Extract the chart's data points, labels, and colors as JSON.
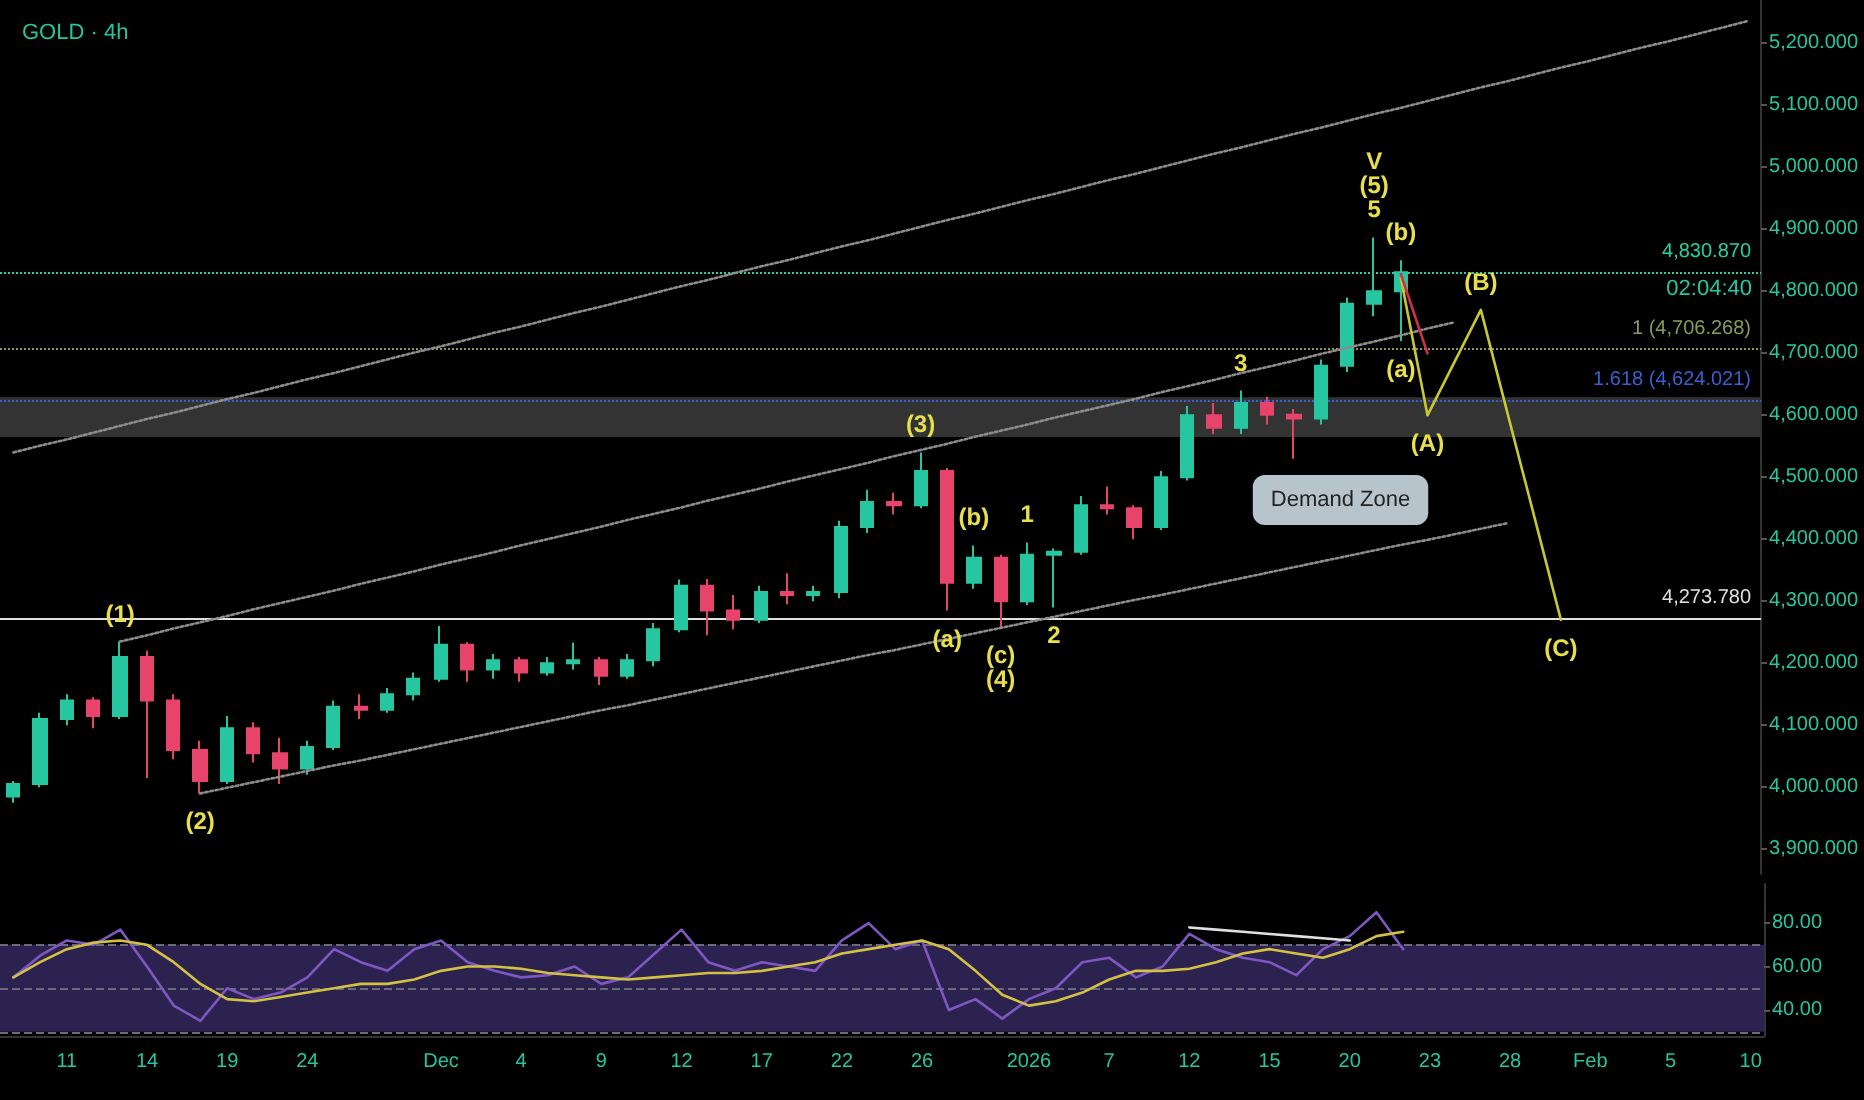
{
  "chart_data": [
    {
      "type": "candlestick",
      "title": "GOLD · 4h",
      "categories": [
        null,
        null,
        null,
        null,
        null,
        null,
        null,
        null,
        null,
        null,
        null,
        null,
        null,
        null,
        null,
        null,
        null,
        null,
        null,
        null,
        null,
        null,
        null,
        null,
        null,
        null,
        null,
        null,
        null,
        null,
        null,
        null,
        null,
        null,
        null,
        null,
        null,
        null,
        null,
        null,
        null,
        null,
        null,
        null,
        null,
        null,
        null,
        null,
        null,
        null,
        null,
        null,
        null,
        null,
        null,
        null,
        null,
        null,
        null,
        null,
        null,
        null,
        null,
        null,
        null,
        null
      ],
      "ohlc": [
        [
          3985,
          4010,
          3975,
          4005
        ],
        [
          4005,
          4120,
          4000,
          4110
        ],
        [
          4110,
          4150,
          4100,
          4140
        ],
        [
          4140,
          4145,
          4095,
          4115
        ],
        [
          4115,
          4235,
          4110,
          4210
        ],
        [
          4210,
          4220,
          4015,
          4140
        ],
        [
          4140,
          4150,
          4045,
          4060
        ],
        [
          4060,
          4075,
          3990,
          4010
        ],
        [
          4010,
          4115,
          4005,
          4095
        ],
        [
          4095,
          4105,
          4040,
          4055
        ],
        [
          4055,
          4080,
          4005,
          4030
        ],
        [
          4030,
          4075,
          4020,
          4065
        ],
        [
          4065,
          4140,
          4060,
          4130
        ],
        [
          4130,
          4150,
          4110,
          4125
        ],
        [
          4125,
          4160,
          4120,
          4150
        ],
        [
          4150,
          4185,
          4140,
          4175
        ],
        [
          4175,
          4260,
          4170,
          4230
        ],
        [
          4230,
          4234,
          4170,
          4190
        ],
        [
          4190,
          4215,
          4175,
          4205
        ],
        [
          4205,
          4210,
          4170,
          4185
        ],
        [
          4185,
          4210,
          4180,
          4200
        ],
        [
          4200,
          4233,
          4190,
          4205
        ],
        [
          4205,
          4210,
          4165,
          4180
        ],
        [
          4180,
          4215,
          4175,
          4205
        ],
        [
          4205,
          4265,
          4195,
          4255
        ],
        [
          4255,
          4335,
          4250,
          4325
        ],
        [
          4325,
          4336,
          4245,
          4285
        ],
        [
          4285,
          4310,
          4255,
          4270
        ],
        [
          4270,
          4325,
          4265,
          4315
        ],
        [
          4315,
          4345,
          4295,
          4310
        ],
        [
          4310,
          4325,
          4300,
          4315
        ],
        [
          4315,
          4430,
          4305,
          4420
        ],
        [
          4420,
          4480,
          4410,
          4460
        ],
        [
          4460,
          4475,
          4440,
          4455
        ],
        [
          4455,
          4540,
          4450,
          4510
        ],
        [
          4510,
          4515,
          4285,
          4330
        ],
        [
          4330,
          4390,
          4320,
          4370
        ],
        [
          4370,
          4375,
          4258,
          4300
        ],
        [
          4300,
          4395,
          4294,
          4375
        ],
        [
          4375,
          4385,
          4290,
          4380
        ],
        [
          4380,
          4470,
          4375,
          4455
        ],
        [
          4455,
          4485,
          4440,
          4450
        ],
        [
          4450,
          4455,
          4400,
          4420
        ],
        [
          4420,
          4510,
          4415,
          4500
        ],
        [
          4500,
          4615,
          4495,
          4600
        ],
        [
          4600,
          4620,
          4570,
          4580
        ],
        [
          4580,
          4640,
          4570,
          4620
        ],
        [
          4620,
          4630,
          4585,
          4601
        ],
        [
          4601,
          4610,
          4530,
          4595
        ],
        [
          4595,
          4690,
          4585,
          4680
        ],
        [
          4680,
          4790,
          4670,
          4780
        ],
        [
          4780,
          4887,
          4760,
          4800
        ],
        [
          4800,
          4850,
          4720,
          4830.87
        ],
        null,
        null,
        null,
        null,
        null,
        null,
        null,
        null,
        null,
        null,
        null,
        null,
        null
      ],
      "colors": [
        "#26c6a0",
        "#26c6a0",
        "#26c6a0",
        "#e8436a",
        "#26c6a0",
        "#e8436a",
        "#e8436a",
        "#e8436a",
        "#26c6a0",
        "#e8436a",
        "#e8436a",
        "#26c6a0",
        "#26c6a0",
        "#e8436a",
        "#26c6a0",
        "#26c6a0",
        "#26c6a0",
        "#e8436a",
        "#26c6a0",
        "#e8436a",
        "#26c6a0",
        "#26c6a0",
        "#e8436a",
        "#26c6a0",
        "#26c6a0",
        "#26c6a0",
        "#e8436a",
        "#e8436a",
        "#26c6a0",
        "#e8436a",
        "#26c6a0",
        "#26c6a0",
        "#26c6a0",
        "#e8436a",
        "#26c6a0",
        "#e8436a",
        "#26c6a0",
        "#e8436a",
        "#26c6a0",
        "#26c6a0",
        "#26c6a0",
        "#e8436a",
        "#e8436a",
        "#26c6a0",
        "#26c6a0",
        "#e8436a",
        "#26c6a0",
        "#e8436a",
        "#e8436a",
        "#26c6a0",
        "#26c6a0",
        "#26c6a0",
        "#26c6a0",
        null,
        null,
        null,
        null,
        null,
        null,
        null,
        null,
        null,
        null,
        null,
        null,
        null
      ],
      "series": [
        {
          "type": "line",
          "color": "#8c8c8c",
          "line_style": "dotted",
          "values": [
            4540,
            4551,
            4561,
            4572,
            4583,
            4594,
            4604,
            4615,
            4626,
            4636,
            4647,
            4658,
            4668,
            4679,
            4690,
            4701,
            4711,
            4722,
            4733,
            4743,
            4754,
            4765,
            4775,
            4786,
            4797,
            4808,
            4818,
            4829,
            4840,
            4850,
            4861,
            4872,
            4882,
            4893,
            4904,
            4915,
            4925,
            4936,
            4947,
            4957,
            4968,
            4979,
            4989,
            5000,
            5011,
            5022,
            5032,
            5043,
            5054,
            5064,
            5075,
            5086,
            5096,
            5107,
            5118,
            5129,
            5139,
            5150,
            5161,
            5171,
            5182,
            5193,
            5203,
            5214,
            5225,
            5236
          ]
        },
        {
          "type": "line",
          "color": "#8c8c8c",
          "line_style": "dotted",
          "values": [
            null,
            null,
            null,
            null,
            4235,
            4245,
            4256,
            4266,
            4276,
            4287,
            4297,
            4307,
            4317,
            4328,
            4338,
            4348,
            4359,
            4369,
            4379,
            4390,
            4400,
            4410,
            4420,
            4431,
            4441,
            4451,
            4462,
            4472,
            4482,
            4493,
            4503,
            4513,
            4523,
            4534,
            4544,
            4554,
            4565,
            4575,
            4585,
            4596,
            4606,
            4616,
            4626,
            4637,
            4647,
            4657,
            4668,
            4678,
            4688,
            4699,
            4709,
            4719,
            4729,
            4740,
            4750,
            null,
            null,
            null,
            null,
            null,
            null,
            null,
            null,
            null,
            null,
            null
          ]
        },
        {
          "type": "line",
          "color": "#8c8c8c",
          "line_style": "dotted",
          "values": [
            null,
            null,
            null,
            null,
            null,
            null,
            null,
            3990,
            3999,
            4008,
            4017,
            4026,
            4035,
            4043,
            4052,
            4061,
            4070,
            4079,
            4088,
            4097,
            4106,
            4115,
            4124,
            4132,
            4141,
            4150,
            4159,
            4168,
            4177,
            4186,
            4195,
            4204,
            4213,
            4221,
            4230,
            4239,
            4248,
            4257,
            4266,
            4275,
            4284,
            4293,
            4302,
            4310,
            4319,
            4328,
            4337,
            4346,
            4355,
            4364,
            4373,
            4382,
            4391,
            4399,
            4408,
            4417,
            4426,
            null,
            null,
            null,
            null,
            null,
            null,
            null,
            null,
            null
          ]
        },
        {
          "type": "line",
          "color": "#c8c832",
          "line_style": "solid",
          "values": [
            null,
            null,
            null,
            null,
            null,
            null,
            null,
            null,
            null,
            null,
            null,
            null,
            null,
            null,
            null,
            null,
            null,
            null,
            null,
            null,
            null,
            null,
            null,
            null,
            null,
            null,
            null,
            null,
            null,
            null,
            null,
            null,
            null,
            null,
            null,
            null,
            null,
            null,
            null,
            null,
            null,
            null,
            null,
            null,
            null,
            null,
            null,
            null,
            null,
            null,
            null,
            null,
            4822,
            4600,
            4685,
            4770,
            4603,
            4437,
            4270,
            null,
            null,
            null,
            null,
            null,
            null,
            null
          ]
        },
        {
          "type": "line",
          "color": "#d0304a",
          "line_style": "solid",
          "values": [
            null,
            null,
            null,
            null,
            null,
            null,
            null,
            null,
            null,
            null,
            null,
            null,
            null,
            null,
            null,
            null,
            null,
            null,
            null,
            null,
            null,
            null,
            null,
            null,
            null,
            null,
            null,
            null,
            null,
            null,
            null,
            null,
            null,
            null,
            null,
            null,
            null,
            null,
            null,
            null,
            null,
            null,
            null,
            null,
            null,
            null,
            null,
            null,
            null,
            null,
            null,
            null,
            4828,
            4700,
            null,
            null,
            null,
            null,
            null,
            null,
            null,
            null,
            null,
            null,
            null,
            null
          ]
        }
      ],
      "ylim": [
        3860,
        5270
      ],
      "yticks": [
        {
          "value": 3900,
          "label": "3,900.000"
        },
        {
          "value": 4000,
          "label": "4,000.000"
        },
        {
          "value": 4100,
          "label": "4,100.000"
        },
        {
          "value": 4200,
          "label": "4,200.000"
        },
        {
          "value": 4300,
          "label": "4,300.000"
        },
        {
          "value": 4400,
          "label": "4,400.000"
        },
        {
          "value": 4500,
          "label": "4,500.000"
        },
        {
          "value": 4600,
          "label": "4,600.000"
        },
        {
          "value": 4700,
          "label": "4,700.000"
        },
        {
          "value": 4800,
          "label": "4,800.000"
        },
        {
          "value": 4900,
          "label": "4,900.000"
        },
        {
          "value": 5000,
          "label": "5,000.000"
        },
        {
          "value": 5100,
          "label": "5,100.000"
        },
        {
          "value": 5200,
          "label": "5,200.000"
        }
      ],
      "ref_lines": [
        {
          "axis": "y",
          "value": 4830.87,
          "label": "4,830.870",
          "color": "#22d3a6",
          "line_style": "dotted"
        },
        {
          "axis": "y",
          "value": 4706.268,
          "label": "1 (4,706.268)",
          "color": "#8a9a5b",
          "line_style": "dotted"
        },
        {
          "axis": "y",
          "value": 4624.021,
          "label": "1.618 (4,624.021)",
          "color": "#3a5fd0",
          "line_style": "dotted"
        },
        {
          "axis": "y",
          "value": 4273.78,
          "label": "4,273.780",
          "color": "#e0e0e0",
          "line_style": "solid"
        }
      ],
      "bands": [
        {
          "axis": "y",
          "from": 4565,
          "to": 4629,
          "label": "Demand Zone",
          "color": "#333333"
        }
      ],
      "annotations": [
        {
          "text": "(1)",
          "y": 4235
        },
        {
          "text": "(2)",
          "y": 3990
        },
        {
          "text": "(3)",
          "y": 4540
        },
        {
          "text": "(a)",
          "y": 4285
        },
        {
          "text": "(b)",
          "y": 4390
        },
        {
          "text": "(c)",
          "y": 4258
        },
        {
          "text": "(4)",
          "y": 4258
        },
        {
          "text": "1",
          "y": 4395
        },
        {
          "text": "2",
          "y": 4290
        },
        {
          "text": "3",
          "y": 4640
        },
        {
          "text": "5",
          "y": 4887
        },
        {
          "text": "(5)",
          "y": 4887
        },
        {
          "text": "V",
          "y": 4887
        },
        {
          "text": "(b)",
          "y": 4850
        },
        {
          "text": "(a)",
          "y": 4720
        },
        {
          "text": "(A)",
          "y": 4600
        },
        {
          "text": "(B)",
          "y": 4770
        },
        {
          "text": "(C)",
          "y": 4270
        },
        "02:04:40"
      ],
      "tick_labels": "y",
      "grid": false,
      "marker": "none"
    },
    {
      "type": "line",
      "categories": [
        null,
        null,
        "11",
        null,
        null,
        "14",
        null,
        null,
        "19",
        null,
        null,
        "24",
        null,
        null,
        null,
        null,
        "Dec",
        null,
        null,
        "4",
        null,
        null,
        "9",
        null,
        null,
        "12",
        null,
        null,
        "17",
        null,
        null,
        "22",
        null,
        null,
        "26",
        null,
        null,
        null,
        "2026",
        null,
        null,
        "7",
        null,
        null,
        "12",
        null,
        null,
        "15",
        null,
        null,
        "20",
        null,
        null,
        "23",
        null,
        null,
        "28",
        null,
        null,
        "Feb",
        null,
        null,
        "5",
        null,
        null,
        "10"
      ],
      "series": [
        {
          "color": "#7e57c2",
          "values": [
            55,
            65,
            72,
            70,
            77,
            60,
            42,
            35,
            50,
            45,
            48,
            55,
            68,
            62,
            58,
            68,
            72,
            62,
            58,
            55,
            56,
            60,
            52,
            55,
            66,
            77,
            62,
            58,
            62,
            60,
            58,
            72,
            80,
            68,
            72,
            40,
            45,
            36,
            45,
            50,
            62,
            64,
            55,
            60,
            75,
            68,
            64,
            62,
            56,
            68,
            74,
            85,
            68,
            null,
            null,
            null,
            null,
            null,
            null,
            null,
            null,
            null,
            null,
            null,
            null,
            null
          ]
        },
        {
          "color": "#d4c043",
          "values": [
            55,
            62,
            68,
            71,
            72,
            70,
            62,
            52,
            45,
            44,
            46,
            48,
            50,
            52,
            52,
            54,
            58,
            60,
            60,
            59,
            57,
            56,
            55,
            54,
            55,
            56,
            57,
            57,
            58,
            60,
            62,
            66,
            68,
            70,
            72,
            68,
            58,
            47,
            42,
            44,
            48,
            54,
            58,
            58,
            59,
            62,
            66,
            68,
            66,
            64,
            68,
            74,
            76,
            null,
            null,
            null,
            null,
            null,
            null,
            null,
            null,
            null,
            null,
            null,
            null,
            null
          ]
        },
        {
          "color": "#e0e0e0",
          "values": [
            null,
            null,
            null,
            null,
            null,
            null,
            null,
            null,
            null,
            null,
            null,
            null,
            null,
            null,
            null,
            null,
            null,
            null,
            null,
            null,
            null,
            null,
            null,
            null,
            null,
            null,
            null,
            null,
            null,
            null,
            null,
            null,
            null,
            null,
            null,
            null,
            null,
            null,
            null,
            null,
            null,
            null,
            null,
            null,
            78,
            77,
            76,
            75,
            74,
            73,
            72,
            null,
            null,
            null,
            null,
            null,
            null,
            null,
            null,
            null,
            null,
            null,
            null,
            null,
            null,
            null
          ]
        }
      ],
      "ylim": [
        28,
        98
      ],
      "yticks": [
        {
          "value": 40,
          "label": "40.00"
        },
        {
          "value": 60,
          "label": "60.00"
        },
        {
          "value": 80,
          "label": "80.00"
        }
      ],
      "bands": [
        {
          "axis": "y",
          "from": 30,
          "to": 70,
          "color": "#2c2250"
        }
      ],
      "ref_lines": [
        {
          "axis": "y",
          "value": 70,
          "color": "#6a6a7a",
          "line_style": "dashed"
        },
        {
          "axis": "y",
          "value": 50,
          "color": "#6a6a7a",
          "line_style": "dashed"
        },
        {
          "axis": "y",
          "value": 30,
          "color": "#6a6a7a",
          "line_style": "dashed"
        }
      ],
      "grid": false,
      "marker": "none"
    }
  ]
}
